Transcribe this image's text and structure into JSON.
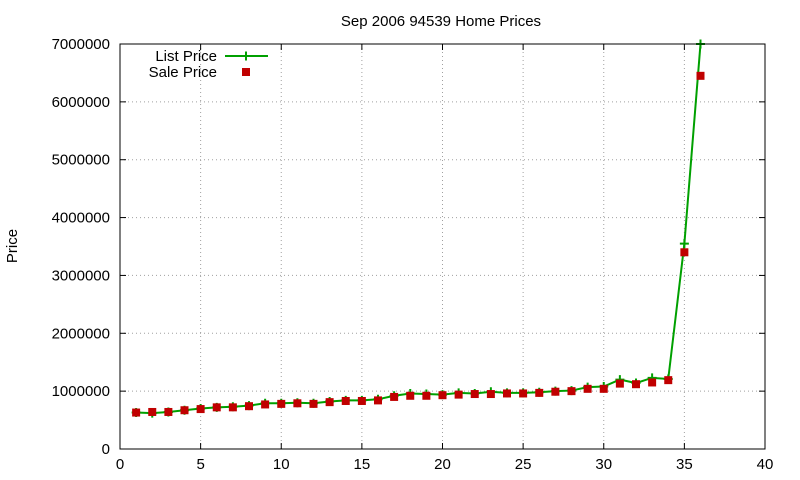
{
  "chart_data": {
    "type": "line",
    "title": "Sep 2006 94539 Home Prices",
    "xlabel": "",
    "ylabel": "Price",
    "xlim": [
      0,
      40
    ],
    "ylim": [
      0,
      7000000
    ],
    "xticks": [
      0,
      5,
      10,
      15,
      20,
      25,
      30,
      35,
      40
    ],
    "yticks": [
      0,
      1000000,
      2000000,
      3000000,
      4000000,
      5000000,
      6000000,
      7000000
    ],
    "xtick_labels": [
      "0",
      "5",
      "10",
      "15",
      "20",
      "25",
      "30",
      "35",
      "40"
    ],
    "ytick_labels": [
      "0",
      "1000000",
      "2000000",
      "3000000",
      "4000000",
      "5000000",
      "6000000",
      "7000000"
    ],
    "grid": true,
    "legend_position": "top-left",
    "x": [
      1,
      2,
      3,
      4,
      5,
      6,
      7,
      8,
      9,
      10,
      11,
      12,
      13,
      14,
      15,
      16,
      17,
      18,
      19,
      20,
      21,
      22,
      23,
      24,
      25,
      26,
      27,
      28,
      29,
      30,
      31,
      32,
      33,
      34,
      35,
      36
    ],
    "series": [
      {
        "name": "List Price",
        "style": "line-points",
        "marker": "plus",
        "color": "#00a000",
        "values": [
          630000,
          620000,
          640000,
          670000,
          700000,
          720000,
          730000,
          750000,
          790000,
          790000,
          800000,
          790000,
          820000,
          840000,
          840000,
          860000,
          920000,
          960000,
          950000,
          940000,
          970000,
          960000,
          990000,
          970000,
          970000,
          980000,
          1000000,
          1010000,
          1070000,
          1080000,
          1200000,
          1140000,
          1230000,
          1210000,
          3550000,
          7000000
        ]
      },
      {
        "name": "Sale Price",
        "style": "points",
        "marker": "square",
        "color": "#c00000",
        "values": [
          630000,
          640000,
          640000,
          670000,
          690000,
          720000,
          720000,
          740000,
          770000,
          780000,
          790000,
          780000,
          810000,
          830000,
          830000,
          840000,
          900000,
          920000,
          920000,
          930000,
          940000,
          950000,
          950000,
          960000,
          960000,
          970000,
          990000,
          1000000,
          1040000,
          1040000,
          1130000,
          1120000,
          1150000,
          1190000,
          3400000,
          6450000
        ]
      }
    ]
  }
}
